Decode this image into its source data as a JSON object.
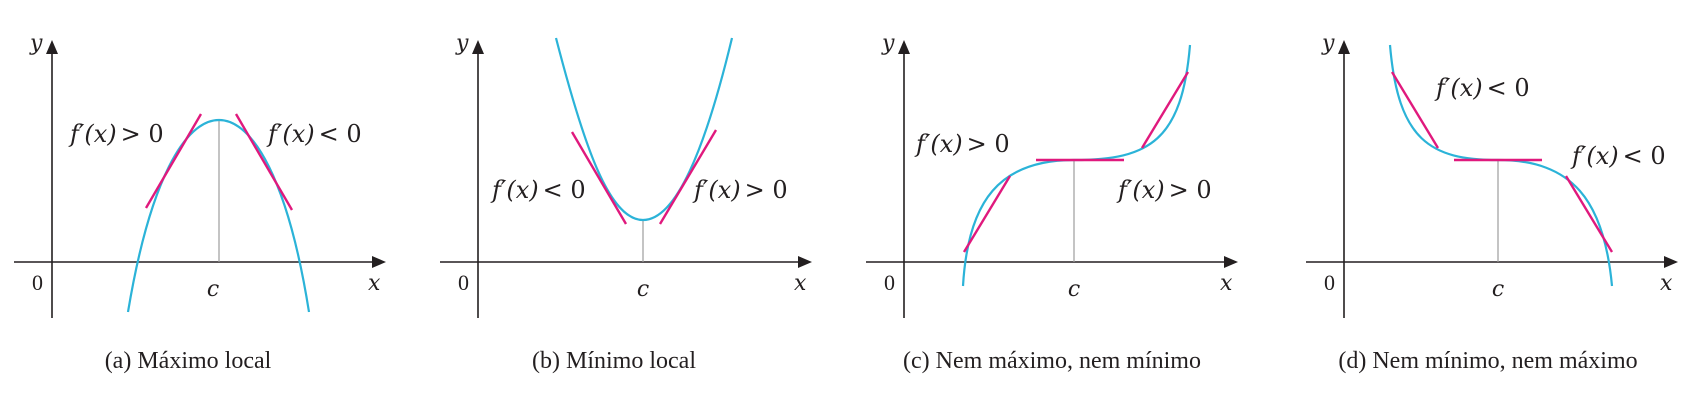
{
  "panels": [
    {
      "caption": "(a) Máximo local",
      "axis_y": "y",
      "axis_x": "x",
      "origin": "0",
      "point": "c",
      "left_label": {
        "fn": "f′(x)",
        "rel": "> 0"
      },
      "right_label": {
        "fn": "f′(x)",
        "rel": "< 0"
      }
    },
    {
      "caption": "(b) Mínimo local",
      "axis_y": "y",
      "axis_x": "x",
      "origin": "0",
      "point": "c",
      "left_label": {
        "fn": "f′(x)",
        "rel": "< 0"
      },
      "right_label": {
        "fn": "f′(x)",
        "rel": "> 0"
      }
    },
    {
      "caption": "(c) Nem máximo, nem mínimo",
      "axis_y": "y",
      "axis_x": "x",
      "origin": "0",
      "point": "c",
      "left_label": {
        "fn": "f′(x)",
        "rel": "> 0"
      },
      "right_label": {
        "fn": "f′(x)",
        "rel": "> 0"
      }
    },
    {
      "caption": "(d) Nem mínimo, nem máximo",
      "axis_y": "y",
      "axis_x": "x",
      "origin": "0",
      "point": "c",
      "left_label": {
        "fn": "f′(x)",
        "rel": "< 0"
      },
      "right_label": {
        "fn": "f′(x)",
        "rel": "< 0"
      }
    }
  ],
  "colors": {
    "curve": "#2bb3d8",
    "tangent": "#e0197d",
    "axis": "#231f20",
    "guide": "#9d9d9d"
  }
}
